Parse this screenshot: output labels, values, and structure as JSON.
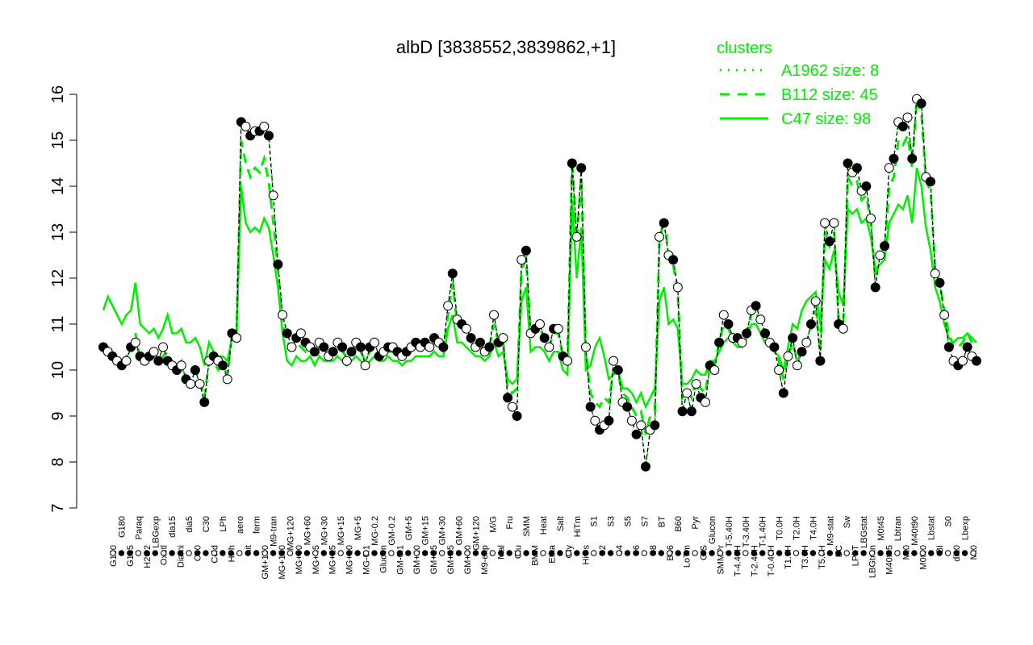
{
  "chart_data": {
    "type": "line",
    "title": "albD [3838552,3839862,+1]",
    "xlabel": "",
    "ylabel": "",
    "ylim": [
      7,
      16
    ],
    "yticks": [
      7,
      8,
      9,
      10,
      11,
      12,
      13,
      14,
      15,
      16
    ],
    "grid": false,
    "legend": {
      "title": "clusters",
      "placement": "top-right",
      "entries": [
        {
          "label": "A1962 size: 8",
          "style": "dotted"
        },
        {
          "label": "B112 size: 45",
          "style": "dashed"
        },
        {
          "label": "C47 size: 98",
          "style": "solid"
        }
      ]
    },
    "x_tick_labels": [
      "G150",
      "G180",
      "G135",
      "Paraq",
      "H2O2",
      "LBGexp",
      "Oxctl",
      "dia15",
      "Diami",
      "dia5",
      "C90",
      "C30",
      "Cold",
      "LPh",
      "HPh",
      "aero",
      "nit",
      "ferm",
      "GM+150",
      "M9-tran",
      "MG+150",
      "MG+120",
      "MG+90",
      "MG+60",
      "MG+45",
      "MG+30",
      "MG+25",
      "MG+15",
      "MG+10",
      "MG+5",
      "MG-0.1",
      "MG-0.2",
      "Glucon",
      "GM-0.2",
      "GM-0.1",
      "GM+5",
      "GM+10",
      "GM+15",
      "GM+25",
      "GM+30",
      "GM+45",
      "GM+60",
      "GM+90",
      "GM+120",
      "M9-exp",
      "M/G",
      "Mal",
      "Fru",
      "Glu",
      "SMM",
      "BMM",
      "Heat",
      "Etha",
      "Salt",
      "Gly",
      "HiTm",
      "HiOs",
      "S1",
      "S2",
      "S3",
      "S4",
      "S5",
      "S6",
      "S7",
      "S8",
      "BT",
      "B36",
      "B60",
      "LoTm",
      "Pyr",
      "G/S",
      "Glucon",
      "SMMPr",
      "T-5.40H",
      "T-4.40H",
      "T-3.40H",
      "T-2.40H",
      "T-1.40H",
      "T-0.40H",
      "T0.0H",
      "T1.0H",
      "T2.0H",
      "T3.0H",
      "T4.0H",
      "T5.0H",
      "M9-stat",
      "BC",
      "Sw",
      "LPhT",
      "LBGstat",
      "LBGtran",
      "M0t45",
      "M40t45",
      "Lbtran",
      "Mt0",
      "M40t90",
      "M0t90",
      "Lbstat",
      "BI",
      "S0",
      "dia0",
      "Lbexp",
      "Mt0"
    ],
    "series": [
      {
        "values": [
          10.5,
          10.4,
          10.3,
          10.2,
          10.1,
          10.2,
          10.5,
          10.6,
          10.3,
          10.2,
          10.3,
          10.4,
          10.2,
          10.5,
          10.2,
          10.1,
          10.0,
          10.1,
          9.8,
          9.7,
          10.0,
          9.7,
          9.3,
          10.2,
          10.3,
          10.2,
          10.1,
          9.8,
          10.8,
          10.7,
          15.4,
          15.3,
          15.1,
          15.2,
          15.2,
          15.3,
          15.1,
          13.8,
          12.3,
          11.2,
          10.8,
          10.5,
          10.7,
          10.8,
          10.6,
          10.5,
          10.4,
          10.6,
          10.5,
          10.3,
          10.4,
          10.6,
          10.5,
          10.2,
          10.4,
          10.6,
          10.5,
          10.1,
          10.5,
          10.6,
          10.3,
          10.4,
          10.5,
          10.5,
          10.4,
          10.3,
          10.4,
          10.5,
          10.6,
          10.5,
          10.6,
          10.5,
          10.7,
          10.6,
          10.5,
          11.4,
          12.1,
          11.1,
          11.0,
          10.9,
          10.7,
          10.5,
          10.6,
          10.4,
          10.5,
          11.2,
          10.6,
          10.7,
          9.4,
          9.2,
          9.0,
          12.4,
          12.6,
          10.8,
          10.9,
          11.0,
          10.7,
          10.5,
          10.9,
          10.9,
          10.3,
          10.2,
          14.5,
          12.9,
          14.4,
          10.5,
          9.2,
          8.9,
          8.7,
          8.8,
          8.9,
          10.2,
          10.0,
          9.3,
          9.2,
          8.9,
          8.6,
          8.8,
          7.9,
          8.7,
          8.8,
          12.9,
          13.2,
          12.5,
          12.4,
          11.8,
          9.1,
          9.5,
          9.1,
          9.7,
          9.4,
          9.3,
          10.1,
          10.0,
          10.6,
          11.2,
          11.0,
          10.7,
          10.7,
          10.6,
          10.8,
          11.3,
          11.4,
          11.1,
          10.8,
          10.6,
          10.5,
          10.0,
          9.5,
          10.3,
          10.7,
          10.1,
          10.4,
          10.6,
          11.0,
          11.5,
          10.2,
          13.2,
          12.8,
          13.2,
          11.0,
          10.9,
          14.5,
          14.3,
          14.4,
          13.9,
          14.0,
          13.3,
          11.8,
          12.5,
          12.7,
          14.4,
          14.6,
          15.4,
          15.3,
          15.5,
          14.6,
          15.9,
          15.8,
          14.2,
          14.1,
          12.1,
          11.9,
          11.2,
          10.5,
          10.2,
          10.1,
          10.2,
          10.5,
          10.3,
          10.2
        ]
      },
      {
        "values": [
          10.4,
          10.5,
          10.3,
          10.2,
          10.1,
          10.3,
          10.4,
          10.8,
          10.2,
          10.3,
          10.2,
          10.3,
          10.1,
          10.3,
          10.4,
          10.1,
          10.1,
          10.2,
          9.8,
          9.9,
          10.0,
          9.8,
          9.4,
          10.2,
          10.2,
          10.0,
          10.1,
          9.9,
          10.8,
          10.8,
          15.0,
          14.5,
          14.2,
          14.4,
          14.3,
          14.6,
          14.1,
          13.2,
          12.2,
          11.0,
          10.6,
          10.5,
          10.6,
          10.5,
          10.4,
          10.5,
          10.3,
          10.5,
          10.4,
          10.3,
          10.4,
          10.5,
          10.4,
          10.3,
          10.3,
          10.5,
          10.4,
          10.2,
          10.4,
          10.5,
          10.3,
          10.4,
          10.4,
          10.4,
          10.3,
          10.3,
          10.4,
          10.4,
          10.5,
          10.5,
          10.5,
          10.5,
          10.6,
          10.5,
          10.4,
          11.2,
          11.9,
          11.0,
          10.9,
          10.8,
          10.6,
          10.5,
          10.5,
          10.4,
          10.5,
          11.0,
          10.6,
          10.6,
          9.6,
          9.5,
          9.6,
          12.2,
          12.4,
          10.8,
          10.8,
          10.9,
          10.7,
          10.5,
          10.8,
          10.8,
          10.3,
          10.2,
          14.6,
          12.8,
          14.2,
          10.4,
          9.5,
          9.3,
          9.2,
          9.4,
          9.3,
          10.0,
          9.9,
          9.5,
          9.4,
          9.2,
          9.0,
          9.1,
          8.6,
          9.0,
          9.1,
          12.8,
          13.3,
          12.5,
          12.3,
          11.7,
          9.4,
          9.6,
          9.4,
          9.8,
          9.6,
          9.5,
          10.2,
          10.1,
          10.6,
          11.0,
          10.9,
          10.7,
          10.7,
          10.6,
          10.8,
          11.2,
          11.3,
          11.0,
          10.8,
          10.6,
          10.5,
          10.2,
          9.8,
          10.3,
          10.6,
          10.2,
          10.4,
          10.6,
          10.9,
          11.3,
          10.4,
          13.0,
          12.7,
          13.0,
          11.1,
          11.0,
          14.2,
          14.0,
          14.1,
          13.7,
          13.8,
          13.2,
          12.0,
          12.4,
          12.5,
          14.0,
          14.2,
          15.0,
          14.9,
          15.1,
          14.4,
          15.9,
          15.6,
          14.1,
          13.9,
          12.2,
          11.9,
          11.3,
          10.8,
          10.5,
          10.5,
          10.6,
          10.8,
          10.6,
          10.5
        ]
      },
      {
        "values": [
          11.3,
          11.6,
          11.4,
          11.2,
          11.0,
          11.2,
          11.3,
          11.9,
          11.0,
          10.9,
          10.8,
          10.9,
          10.7,
          10.9,
          11.2,
          10.8,
          10.8,
          10.9,
          10.6,
          10.6,
          10.7,
          10.5,
          10.1,
          10.6,
          10.4,
          10.3,
          10.3,
          10.2,
          10.7,
          10.8,
          14.0,
          13.2,
          13.0,
          13.1,
          13.0,
          13.3,
          13.1,
          12.5,
          11.8,
          10.8,
          10.2,
          10.1,
          10.3,
          10.2,
          10.2,
          10.3,
          10.1,
          10.3,
          10.2,
          10.2,
          10.2,
          10.3,
          10.2,
          10.1,
          10.2,
          10.3,
          10.2,
          10.1,
          10.2,
          10.3,
          10.2,
          10.2,
          10.3,
          10.2,
          10.2,
          10.1,
          10.2,
          10.2,
          10.3,
          10.3,
          10.3,
          10.3,
          10.4,
          10.3,
          10.3,
          10.9,
          11.2,
          10.6,
          10.6,
          10.5,
          10.4,
          10.3,
          10.3,
          10.2,
          10.3,
          10.6,
          10.3,
          10.4,
          9.8,
          9.7,
          9.8,
          11.5,
          11.8,
          10.4,
          10.5,
          10.5,
          10.4,
          10.2,
          10.4,
          10.4,
          10.0,
          9.9,
          13.7,
          12.0,
          13.1,
          10.0,
          10.1,
          10.5,
          10.7,
          10.3,
          9.8,
          9.9,
          10.0,
          9.6,
          9.6,
          9.5,
          9.3,
          9.5,
          9.2,
          9.4,
          9.6,
          11.5,
          11.8,
          11.0,
          11.1,
          10.9,
          9.7,
          9.7,
          9.8,
          10.0,
          9.9,
          9.9,
          10.2,
          10.2,
          10.4,
          10.6,
          10.7,
          10.6,
          10.5,
          10.5,
          10.7,
          11.0,
          11.0,
          10.8,
          10.6,
          10.5,
          10.4,
          10.3,
          10.0,
          10.5,
          11.0,
          10.9,
          11.3,
          11.5,
          11.6,
          11.7,
          11.0,
          12.4,
          12.2,
          12.6,
          11.7,
          11.4,
          13.5,
          13.4,
          13.5,
          13.2,
          13.3,
          12.9,
          12.2,
          12.3,
          12.4,
          13.2,
          13.4,
          13.6,
          13.5,
          13.8,
          13.2,
          14.4,
          14.0,
          13.1,
          12.6,
          11.8,
          11.5,
          11.0,
          10.7,
          10.6,
          10.7,
          10.7,
          10.8,
          10.7,
          10.6
        ]
      }
    ]
  }
}
